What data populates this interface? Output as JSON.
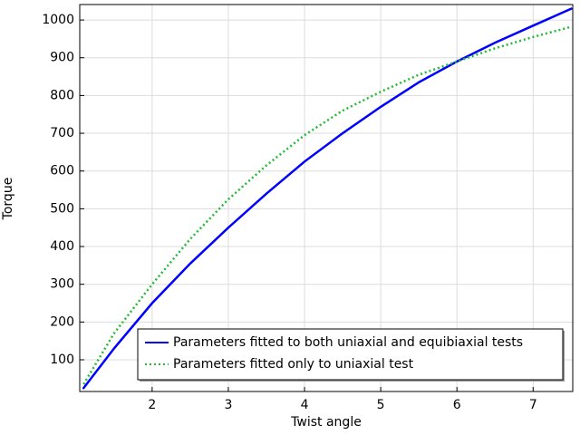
{
  "chart_data": {
    "type": "line",
    "xlabel": "Twist angle",
    "ylabel": "Torque",
    "x": [
      1.1,
      1.5,
      2,
      2.5,
      3,
      3.5,
      4,
      4.5,
      5,
      5.5,
      6,
      6.5,
      7,
      7.5
    ],
    "series": [
      {
        "name": "Parameters fitted to both uniaxial and equibiaxial tests",
        "color": "#0000ff",
        "dash": "solid",
        "values": [
          25,
          130,
          250,
          355,
          450,
          540,
          625,
          700,
          770,
          835,
          890,
          940,
          985,
          1030
        ]
      },
      {
        "name": "Parameters fitted only to uniaxial test",
        "color": "#22bb33",
        "dash": "dotted",
        "values": [
          35,
          170,
          300,
          420,
          525,
          615,
          695,
          760,
          810,
          855,
          890,
          925,
          955,
          982
        ]
      }
    ],
    "xlim": [
      1.05,
      7.52
    ],
    "ylim": [
      16,
      1041
    ],
    "xticks": [
      2,
      3,
      4,
      5,
      6,
      7
    ],
    "yticks": [
      100,
      200,
      300,
      400,
      500,
      600,
      700,
      800,
      900,
      1000
    ],
    "grid": true,
    "legend": "lower right"
  }
}
